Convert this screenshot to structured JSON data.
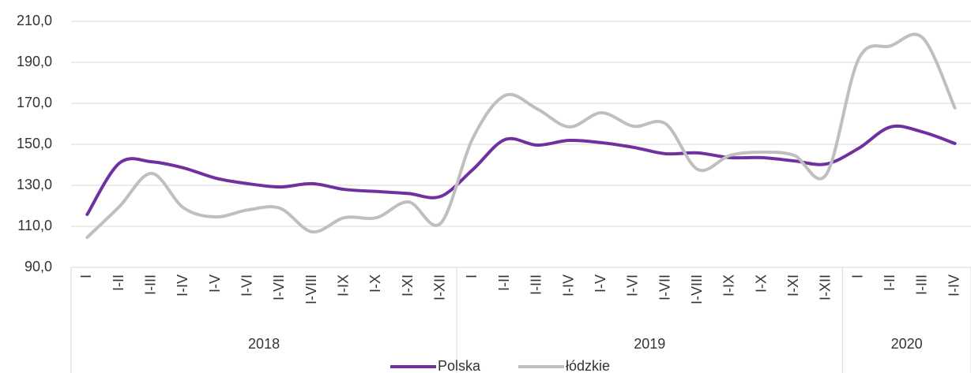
{
  "chart_data": {
    "type": "line",
    "groups": [
      {
        "label": "2018",
        "categories": [
          "I",
          "I-II",
          "I-III",
          "I-IV",
          "I-V",
          "I-VI",
          "I-VII",
          "I-VIII",
          "I-IX",
          "I-X",
          "I-XI",
          "I-XII"
        ]
      },
      {
        "label": "2019",
        "categories": [
          "I",
          "I-II",
          "I-III",
          "I-IV",
          "I-V",
          "I-VI",
          "I-VII",
          "I-VIII",
          "I-IX",
          "I-X",
          "I-XI",
          "I-XII"
        ]
      },
      {
        "label": "2020",
        "categories": [
          "I",
          "I-II",
          "I-III",
          "I-IV"
        ]
      }
    ],
    "series": [
      {
        "name": "Polska",
        "color": "#7030a0",
        "values": [
          115.8,
          140.8,
          141.5,
          138.5,
          133.5,
          130.8,
          129.2,
          130.8,
          128,
          127,
          126,
          124.6,
          137.7,
          152.3,
          149.6,
          151.9,
          150.8,
          148.5,
          145.4,
          145.8,
          143.5,
          143.5,
          141.9,
          140.4,
          148,
          158.5,
          156,
          150.4
        ]
      },
      {
        "name": "łódzkie",
        "color": "#bfbfbf",
        "values": [
          104.6,
          119.6,
          135.8,
          119,
          114.6,
          118,
          118.8,
          107.3,
          114.2,
          114.2,
          121.9,
          111.5,
          153,
          173.8,
          167.3,
          158.5,
          165.4,
          158.8,
          160,
          137.7,
          144.6,
          146.2,
          144.6,
          135.4,
          191.5,
          198,
          201.9,
          167.7
        ]
      }
    ],
    "ylim": [
      90,
      210
    ],
    "yticks": [
      {
        "value": 90,
        "label": "90,0"
      },
      {
        "value": 110,
        "label": "110,0"
      },
      {
        "value": 130,
        "label": "130,0"
      },
      {
        "value": 150,
        "label": "150,0"
      },
      {
        "value": 170,
        "label": "170,0"
      },
      {
        "value": 190,
        "label": "190,0"
      },
      {
        "value": 210,
        "label": "210,0"
      }
    ],
    "grid": true,
    "legend": "bottom"
  }
}
